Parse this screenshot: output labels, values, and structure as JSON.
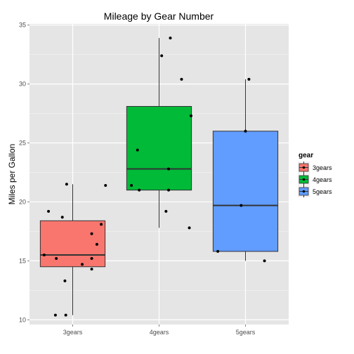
{
  "chart_data": {
    "type": "boxplot",
    "title": "Mileage by Gear Number",
    "xlabel": "",
    "ylabel": "Miles per Gallon",
    "categories": [
      "3gears",
      "4gears",
      "5gears"
    ],
    "ylim": [
      9.6,
      35.1
    ],
    "yticks": [
      10,
      15,
      20,
      25,
      30,
      35
    ],
    "grid": true,
    "legend": {
      "title": "gear",
      "position": "right",
      "entries": [
        "3gears",
        "4gears",
        "5gears"
      ]
    },
    "colors": [
      "#f8766d",
      "#00ba38",
      "#619cff"
    ],
    "boxes": [
      {
        "category": "3gears",
        "min": 10.4,
        "q1": 14.5,
        "median": 15.5,
        "q3": 18.4,
        "max": 21.5
      },
      {
        "category": "4gears",
        "min": 17.8,
        "q1": 21.0,
        "median": 22.8,
        "q3": 28.1,
        "max": 33.9
      },
      {
        "category": "5gears",
        "min": 15.0,
        "q1": 15.8,
        "median": 19.7,
        "q3": 26.0,
        "max": 30.4
      }
    ],
    "points": [
      {
        "category": "3gears",
        "x": 0.67,
        "y": 15.5
      },
      {
        "category": "3gears",
        "x": 0.72,
        "y": 19.2
      },
      {
        "category": "3gears",
        "x": 0.8,
        "y": 10.4
      },
      {
        "category": "3gears",
        "x": 0.81,
        "y": 15.2
      },
      {
        "category": "3gears",
        "x": 0.92,
        "y": 10.4
      },
      {
        "category": "3gears",
        "x": 0.91,
        "y": 13.3
      },
      {
        "category": "3gears",
        "x": 0.88,
        "y": 18.7
      },
      {
        "category": "3gears",
        "x": 0.93,
        "y": 21.5
      },
      {
        "category": "3gears",
        "x": 1.11,
        "y": 14.7
      },
      {
        "category": "3gears",
        "x": 1.22,
        "y": 14.3
      },
      {
        "category": "3gears",
        "x": 1.22,
        "y": 15.2
      },
      {
        "category": "3gears",
        "x": 1.22,
        "y": 17.3
      },
      {
        "category": "3gears",
        "x": 1.28,
        "y": 16.4
      },
      {
        "category": "3gears",
        "x": 1.33,
        "y": 18.1
      },
      {
        "category": "3gears",
        "x": 1.38,
        "y": 21.4
      },
      {
        "category": "4gears",
        "x": 1.68,
        "y": 21.4
      },
      {
        "category": "4gears",
        "x": 1.77,
        "y": 21.0
      },
      {
        "category": "4gears",
        "x": 1.75,
        "y": 24.4
      },
      {
        "category": "4gears",
        "x": 2.03,
        "y": 32.4
      },
      {
        "category": "4gears",
        "x": 2.08,
        "y": 19.2
      },
      {
        "category": "4gears",
        "x": 2.11,
        "y": 21.0
      },
      {
        "category": "4gears",
        "x": 2.11,
        "y": 22.8
      },
      {
        "category": "4gears",
        "x": 2.13,
        "y": 33.9
      },
      {
        "category": "4gears",
        "x": 2.26,
        "y": 30.4
      },
      {
        "category": "4gears",
        "x": 2.35,
        "y": 17.8
      },
      {
        "category": "4gears",
        "x": 2.37,
        "y": 27.3
      },
      {
        "category": "5gears",
        "x": 2.68,
        "y": 15.8
      },
      {
        "category": "5gears",
        "x": 2.95,
        "y": 19.7
      },
      {
        "category": "5gears",
        "x": 3.0,
        "y": 26.0
      },
      {
        "category": "5gears",
        "x": 3.04,
        "y": 30.4
      },
      {
        "category": "5gears",
        "x": 3.22,
        "y": 15.0
      }
    ]
  }
}
